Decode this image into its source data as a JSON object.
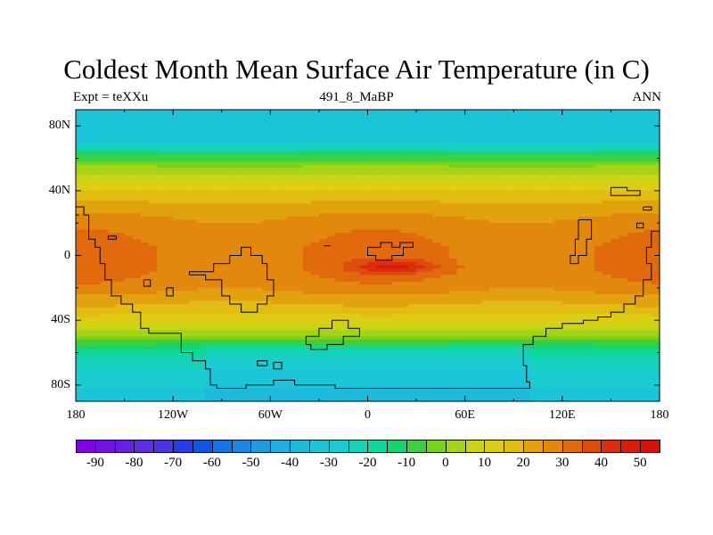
{
  "title": "Coldest Month Mean Surface Air Temperature (in C)",
  "subtitle_left": "Expt = teXXu",
  "subtitle_center": "491_8_MaBP",
  "subtitle_right": "ANN",
  "chart_data": {
    "type": "heatmap",
    "variable": "Coldest month mean surface air temperature",
    "units": "C",
    "x_ticks": [
      {
        "label": "180",
        "lon": -180
      },
      {
        "label": "120W",
        "lon": -120
      },
      {
        "label": "60W",
        "lon": -60
      },
      {
        "label": "0",
        "lon": 0
      },
      {
        "label": "60E",
        "lon": 60
      },
      {
        "label": "120E",
        "lon": 120
      },
      {
        "label": "180",
        "lon": 180
      }
    ],
    "y_ticks": [
      {
        "label": "80N",
        "lat": 80
      },
      {
        "label": "40N",
        "lat": 40
      },
      {
        "label": "0",
        "lat": 0
      },
      {
        "label": "40S",
        "lat": -40
      },
      {
        "label": "80S",
        "lat": -80
      }
    ],
    "xlim": [
      -180,
      180
    ],
    "ylim": [
      -90,
      90
    ],
    "zonal_profile": [
      {
        "lat": 90,
        "value": -35
      },
      {
        "lat": 72,
        "value": -32
      },
      {
        "lat": 65,
        "value": -20
      },
      {
        "lat": 62,
        "value": -10
      },
      {
        "lat": 55,
        "value": 0
      },
      {
        "lat": 48,
        "value": 8
      },
      {
        "lat": 40,
        "value": 15
      },
      {
        "lat": 30,
        "value": 22
      },
      {
        "lat": 20,
        "value": 27
      },
      {
        "lat": 5,
        "value": 30
      },
      {
        "lat": -10,
        "value": 30
      },
      {
        "lat": -20,
        "value": 27
      },
      {
        "lat": -30,
        "value": 20
      },
      {
        "lat": -40,
        "value": 12
      },
      {
        "lat": -48,
        "value": 2
      },
      {
        "lat": -55,
        "value": -10
      },
      {
        "lat": -62,
        "value": -20
      },
      {
        "lat": -72,
        "value": -27
      },
      {
        "lat": -90,
        "value": -32
      }
    ],
    "hotspot": {
      "lon": 15,
      "lat": -7,
      "value": 45
    },
    "colorbar": {
      "levels": [
        -90,
        -85,
        -80,
        -75,
        -70,
        -65,
        -60,
        -55,
        -50,
        -45,
        -40,
        -35,
        -30,
        -25,
        -20,
        -15,
        -10,
        -5,
        0,
        5,
        10,
        15,
        20,
        25,
        30,
        35,
        40,
        45,
        50
      ],
      "labels": [
        {
          "text": "-90",
          "value": -90
        },
        {
          "text": "-80",
          "value": -80
        },
        {
          "text": "-70",
          "value": -70
        },
        {
          "text": "-60",
          "value": -60
        },
        {
          "text": "-50",
          "value": -50
        },
        {
          "text": "-40",
          "value": -40
        },
        {
          "text": "-30",
          "value": -30
        },
        {
          "text": "-20",
          "value": -20
        },
        {
          "text": "-10",
          "value": -10
        },
        {
          "text": "0",
          "value": 0
        },
        {
          "text": "10",
          "value": 10
        },
        {
          "text": "20",
          "value": 20
        },
        {
          "text": "30",
          "value": 30
        },
        {
          "text": "40",
          "value": 40
        },
        {
          "text": "50",
          "value": 50
        }
      ],
      "colors": [
        "#7f00e6",
        "#7212e6",
        "#6420e4",
        "#5a2ee4",
        "#4a36e0",
        "#2a3ae8",
        "#1254e6",
        "#1672e6",
        "#1a88e4",
        "#1e9ce0",
        "#20aee0",
        "#1ebadc",
        "#1cc4d8",
        "#18ccd0",
        "#14d2b8",
        "#10d89a",
        "#18d470",
        "#3cd040",
        "#78d218",
        "#a4d416",
        "#c8d414",
        "#dcce12",
        "#e2bc10",
        "#e2a20e",
        "#e2880c",
        "#e06a0c",
        "#de4c0c",
        "#dc2e0c",
        "#da1a0c",
        "#d8100c"
      ]
    },
    "coastlines": [
      [
        [
          -180,
          30
        ],
        [
          -175,
          30
        ],
        [
          -175,
          25
        ],
        [
          -172,
          25
        ],
        [
          -172,
          10
        ],
        [
          -168,
          10
        ],
        [
          -168,
          5
        ],
        [
          -165,
          5
        ],
        [
          -165,
          -5
        ],
        [
          -162,
          -5
        ],
        [
          -162,
          -15
        ],
        [
          -158,
          -15
        ],
        [
          -158,
          -25
        ],
        [
          -152,
          -25
        ],
        [
          -152,
          -30
        ],
        [
          -145,
          -30
        ],
        [
          -145,
          -35
        ],
        [
          -140,
          -35
        ],
        [
          -140,
          -45
        ],
        [
          -135,
          -45
        ],
        [
          -135,
          -48
        ],
        [
          -115,
          -48
        ],
        [
          -115,
          -60
        ],
        [
          -108,
          -60
        ],
        [
          -108,
          -65
        ],
        [
          -100,
          -65
        ],
        [
          -100,
          -70
        ],
        [
          -97,
          -70
        ],
        [
          -97,
          -80
        ],
        [
          -93,
          -80
        ],
        [
          -93,
          -82
        ],
        [
          -75,
          -82
        ],
        [
          -75,
          -80
        ],
        [
          -58,
          -80
        ],
        [
          -58,
          -77
        ],
        [
          -45,
          -77
        ],
        [
          -45,
          -80
        ],
        [
          -20,
          -80
        ],
        [
          -20,
          -82
        ],
        [
          100,
          -82
        ],
        [
          100,
          -78
        ],
        [
          98,
          -78
        ],
        [
          98,
          -68
        ],
        [
          96,
          -68
        ],
        [
          96,
          -55
        ],
        [
          102,
          -55
        ],
        [
          102,
          -50
        ],
        [
          110,
          -50
        ],
        [
          110,
          -45
        ],
        [
          120,
          -45
        ],
        [
          120,
          -42
        ],
        [
          133,
          -42
        ],
        [
          133,
          -40
        ],
        [
          142,
          -40
        ],
        [
          142,
          -38
        ],
        [
          150,
          -38
        ],
        [
          150,
          -35
        ],
        [
          158,
          -35
        ],
        [
          158,
          -30
        ],
        [
          165,
          -30
        ],
        [
          165,
          -25
        ],
        [
          170,
          -25
        ],
        [
          170,
          -15
        ],
        [
          175,
          -15
        ],
        [
          175,
          -5
        ],
        [
          172,
          -5
        ],
        [
          172,
          5
        ],
        [
          175,
          5
        ],
        [
          175,
          15
        ],
        [
          180,
          15
        ]
      ],
      [
        [
          -110,
          -12
        ],
        [
          -100,
          -12
        ],
        [
          -100,
          -15
        ],
        [
          -90,
          -15
        ],
        [
          -90,
          -25
        ],
        [
          -85,
          -25
        ],
        [
          -85,
          -30
        ],
        [
          -78,
          -30
        ],
        [
          -78,
          -35
        ],
        [
          -68,
          -35
        ],
        [
          -68,
          -30
        ],
        [
          -62,
          -30
        ],
        [
          -62,
          -25
        ],
        [
          -58,
          -25
        ],
        [
          -58,
          -15
        ],
        [
          -62,
          -15
        ],
        [
          -62,
          -5
        ],
        [
          -65,
          -5
        ],
        [
          -65,
          0
        ],
        [
          -72,
          0
        ],
        [
          -72,
          5
        ],
        [
          -78,
          5
        ],
        [
          -78,
          0
        ],
        [
          -85,
          0
        ],
        [
          -85,
          -5
        ],
        [
          -95,
          -5
        ],
        [
          -95,
          -10
        ],
        [
          -110,
          -10
        ],
        [
          -110,
          -12
        ]
      ],
      [
        [
          -22,
          -40
        ],
        [
          -12,
          -40
        ],
        [
          -12,
          -45
        ],
        [
          -5,
          -45
        ],
        [
          -5,
          -50
        ],
        [
          -15,
          -50
        ],
        [
          -15,
          -55
        ],
        [
          -25,
          -55
        ],
        [
          -25,
          -58
        ],
        [
          -35,
          -58
        ],
        [
          -35,
          -55
        ],
        [
          -38,
          -55
        ],
        [
          -38,
          -50
        ],
        [
          -30,
          -50
        ],
        [
          -30,
          -45
        ],
        [
          -22,
          -45
        ],
        [
          -22,
          -40
        ]
      ],
      [
        [
          0,
          5
        ],
        [
          8,
          5
        ],
        [
          8,
          8
        ],
        [
          15,
          8
        ],
        [
          15,
          5
        ],
        [
          20,
          5
        ],
        [
          20,
          8
        ],
        [
          28,
          8
        ],
        [
          28,
          5
        ],
        [
          22,
          5
        ],
        [
          22,
          0
        ],
        [
          15,
          0
        ],
        [
          15,
          -3
        ],
        [
          5,
          -3
        ],
        [
          5,
          0
        ],
        [
          0,
          0
        ],
        [
          0,
          5
        ]
      ],
      [
        [
          130,
          22
        ],
        [
          138,
          22
        ],
        [
          138,
          10
        ],
        [
          135,
          10
        ],
        [
          135,
          0
        ],
        [
          130,
          0
        ],
        [
          130,
          -5
        ],
        [
          125,
          -5
        ],
        [
          125,
          0
        ],
        [
          128,
          0
        ],
        [
          128,
          10
        ],
        [
          130,
          10
        ],
        [
          130,
          22
        ]
      ],
      [
        [
          150,
          42
        ],
        [
          160,
          42
        ],
        [
          160,
          40
        ],
        [
          168,
          40
        ],
        [
          168,
          37
        ],
        [
          150,
          37
        ],
        [
          150,
          42
        ]
      ],
      [
        [
          -178,
          25
        ],
        [
          -180,
          25
        ]
      ],
      [
        [
          -160,
          12
        ],
        [
          -155,
          12
        ],
        [
          -155,
          10
        ],
        [
          -160,
          10
        ],
        [
          -160,
          12
        ]
      ],
      [
        [
          -138,
          -15
        ],
        [
          -134,
          -15
        ],
        [
          -134,
          -19
        ],
        [
          -138,
          -19
        ],
        [
          -138,
          -15
        ]
      ],
      [
        [
          -124,
          -20
        ],
        [
          -120,
          -20
        ],
        [
          -120,
          -25
        ],
        [
          -124,
          -25
        ],
        [
          -124,
          -20
        ]
      ],
      [
        [
          -68,
          -65
        ],
        [
          -62,
          -65
        ],
        [
          -62,
          -68
        ],
        [
          -68,
          -68
        ],
        [
          -68,
          -65
        ]
      ],
      [
        [
          -58,
          -66
        ],
        [
          -53,
          -66
        ],
        [
          -53,
          -70
        ],
        [
          -58,
          -70
        ],
        [
          -58,
          -66
        ]
      ],
      [
        [
          170,
          30
        ],
        [
          175,
          30
        ],
        [
          175,
          28
        ],
        [
          170,
          28
        ],
        [
          170,
          30
        ]
      ],
      [
        [
          166,
          20
        ],
        [
          170,
          20
        ],
        [
          170,
          17
        ],
        [
          166,
          17
        ],
        [
          166,
          20
        ]
      ],
      [
        [
          -27,
          6
        ],
        [
          -23,
          6
        ]
      ]
    ]
  }
}
